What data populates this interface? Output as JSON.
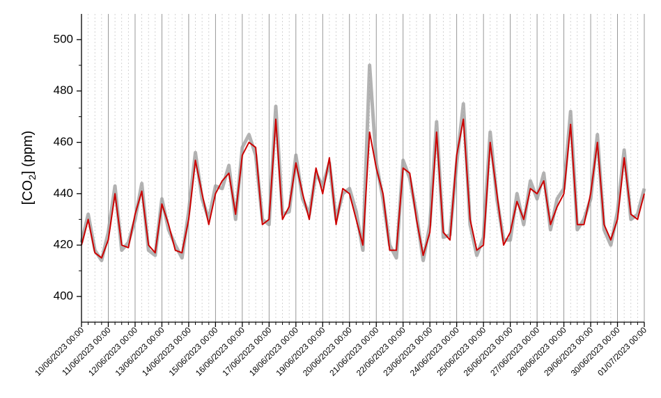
{
  "chart_data": {
    "type": "line",
    "y_label": {
      "text": "[CO",
      "sub": "2",
      "rest": "] (ppm)"
    },
    "x": [
      0,
      0.25,
      0.5,
      0.75,
      1,
      1.25,
      1.5,
      1.75,
      2,
      2.25,
      2.5,
      2.75,
      3,
      3.25,
      3.5,
      3.75,
      4,
      4.25,
      4.5,
      4.75,
      5,
      5.25,
      5.5,
      5.75,
      6,
      6.25,
      6.5,
      6.75,
      7,
      7.25,
      7.5,
      7.75,
      8,
      8.25,
      8.5,
      8.75,
      9,
      9.25,
      9.5,
      9.75,
      10,
      10.25,
      10.5,
      10.75,
      11,
      11.25,
      11.5,
      11.75,
      12,
      12.25,
      12.5,
      12.75,
      13,
      13.25,
      13.5,
      13.75,
      14,
      14.25,
      14.5,
      14.75,
      15,
      15.25,
      15.5,
      15.75,
      16,
      16.25,
      16.5,
      16.75,
      17,
      17.25,
      17.5,
      17.75,
      18,
      18.25,
      18.5,
      18.75,
      19,
      19.25,
      19.5,
      19.75,
      20,
      20.25,
      20.5,
      20.75,
      21
    ],
    "series": [
      {
        "color": "#9a9a9a",
        "values": [
          421,
          432,
          418,
          414,
          425,
          443,
          418,
          421,
          430,
          444,
          418,
          416,
          438,
          426,
          420,
          415,
          433,
          456,
          438,
          430,
          443,
          442,
          451,
          430,
          458,
          463,
          455,
          430,
          428,
          474,
          432,
          433,
          455,
          438,
          432,
          448,
          443,
          452,
          430,
          440,
          442,
          433,
          418,
          490,
          452,
          438,
          420,
          415,
          453,
          446,
          432,
          414,
          428,
          468,
          423,
          424,
          452,
          475,
          428,
          416,
          423,
          464,
          438,
          422,
          422,
          440,
          428,
          445,
          438,
          448,
          426,
          438,
          442,
          472,
          426,
          430,
          438,
          463,
          426,
          420,
          433,
          457,
          430,
          432,
          442
        ]
      },
      {
        "color": "#cc0000",
        "values": [
          420,
          430,
          417,
          415,
          422,
          440,
          420,
          419,
          432,
          441,
          420,
          417,
          436,
          428,
          418,
          417,
          430,
          453,
          440,
          428,
          440,
          445,
          448,
          432,
          455,
          460,
          458,
          428,
          430,
          469,
          430,
          435,
          452,
          440,
          430,
          450,
          440,
          454,
          428,
          442,
          440,
          430,
          420,
          464,
          450,
          440,
          418,
          418,
          450,
          448,
          430,
          416,
          425,
          464,
          425,
          422,
          455,
          469,
          430,
          418,
          420,
          460,
          440,
          420,
          425,
          437,
          430,
          442,
          440,
          445,
          428,
          435,
          440,
          467,
          428,
          428,
          440,
          460,
          428,
          422,
          430,
          454,
          432,
          430,
          440
        ]
      }
    ],
    "xlim": [
      0,
      21
    ],
    "xticks": [
      {
        "value": 0,
        "label": "10/06/2023 00:00"
      },
      {
        "value": 1,
        "label": "11/06/2023 00:00"
      },
      {
        "value": 2,
        "label": "12/06/2023 00:00"
      },
      {
        "value": 3,
        "label": "13/06/2023 00:00"
      },
      {
        "value": 4,
        "label": "14/06/2023 00:00"
      },
      {
        "value": 5,
        "label": "15/06/2023 00:00"
      },
      {
        "value": 6,
        "label": "16/06/2023 00:00"
      },
      {
        "value": 7,
        "label": "17/06/2023 00:00"
      },
      {
        "value": 8,
        "label": "18/06/2023 00:00"
      },
      {
        "value": 9,
        "label": "19/06/2023 00:00"
      },
      {
        "value": 10,
        "label": "20/06/2023 00:00"
      },
      {
        "value": 11,
        "label": "21/06/2023 00:00"
      },
      {
        "value": 12,
        "label": "22/06/2023 00:00"
      },
      {
        "value": 13,
        "label": "23/06/2023 00:00"
      },
      {
        "value": 14,
        "label": "24/06/2023 00:00"
      },
      {
        "value": 15,
        "label": "25/06/2023 00:00"
      },
      {
        "value": 16,
        "label": "26/06/2023 00:00"
      },
      {
        "value": 17,
        "label": "27/06/2023 00:00"
      },
      {
        "value": 18,
        "label": "28/06/2023 00:00"
      },
      {
        "value": 19,
        "label": "29/06/2023 00:00"
      },
      {
        "value": 20,
        "label": "30/06/2023 00:00"
      },
      {
        "value": 21,
        "label": "01/07/2023 00:00"
      }
    ],
    "ylim": [
      390,
      510
    ],
    "yticks": [
      400,
      420,
      440,
      460,
      480,
      500
    ],
    "y_minor_ticks": [
      410,
      430,
      450,
      470,
      490
    ],
    "grid": true
  }
}
